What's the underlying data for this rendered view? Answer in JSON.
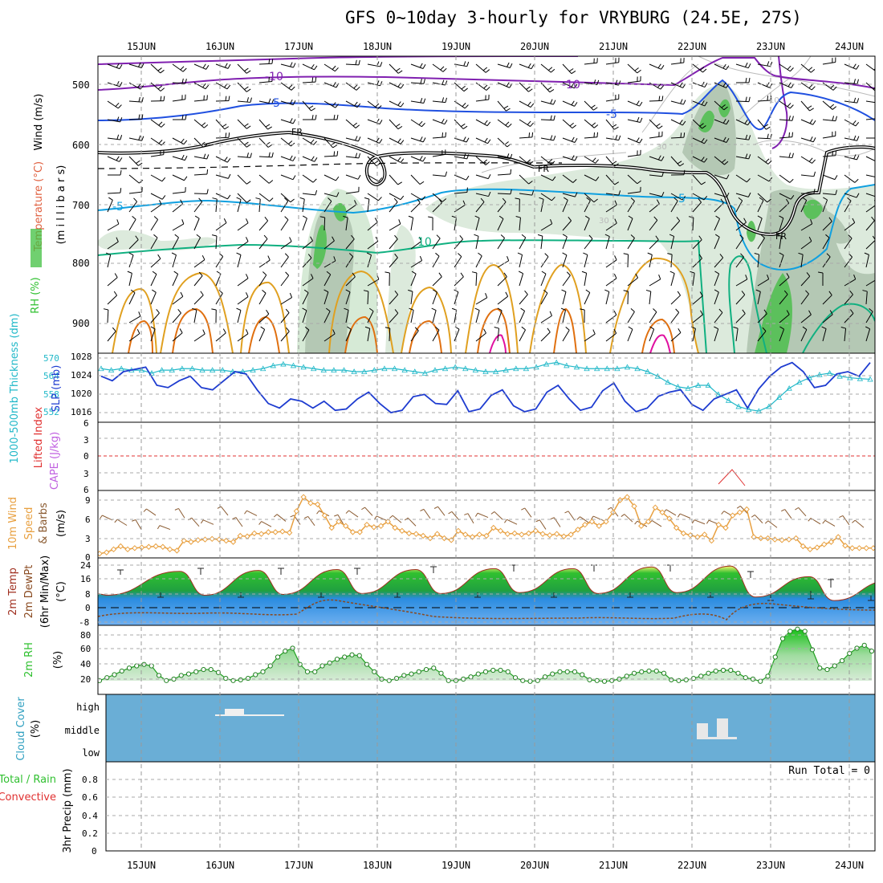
{
  "title": "GFS 0~10day 3-hourly for VRYBURG (24.5E, 27S)",
  "colors": {
    "wind": "#000000",
    "temperature": "#e06040",
    "rh": "#2ec02e",
    "purple": "#8020b0",
    "blue": "#2050e0",
    "lightblue": "#10a0e0",
    "teal": "#10b080",
    "orange": "#e0a020",
    "darkorange": "#e07010",
    "magenta": "#e010a0",
    "slp": "#1e3cd0",
    "thickness": "#20b8c8",
    "cloud_bg": "#6aaed6",
    "wind10": "#e8a040",
    "rh2m": "#30c030"
  },
  "chart_data": [
    {
      "type": "heatmap",
      "name": "upper-air",
      "x": [
        "15JUN",
        "16JUN",
        "17JUN",
        "18JUN",
        "19JUN",
        "20JUN",
        "21JUN",
        "22JUN",
        "23JUN",
        "24JUN"
      ],
      "ylabel_parts": [
        "Wind (m/s)",
        "Temperature (°C)",
        "RH (%)",
        "(m i l l i b a r s)"
      ],
      "yticks": [
        500,
        600,
        700,
        800,
        900
      ],
      "ylim": [
        450,
        950
      ],
      "contour_labels": [
        "-10",
        "-5",
        "FR",
        "FR",
        "-5",
        "10",
        "-10",
        "-5",
        "5",
        "FR",
        "30",
        "30",
        "10"
      ]
    },
    {
      "type": "line",
      "name": "slp-thickness",
      "ylabel_left": "1000-500mb Thickness (dm)",
      "ylabel_right": "SLP (mb)",
      "yticks_left": [
        "570",
        "564",
        "558",
        "552"
      ],
      "yticks_right": [
        "1028",
        "1024",
        "1020",
        "1016"
      ],
      "series": [
        {
          "name": "SLP (mb)",
          "values": [
            1024,
            1023,
            1025,
            1025.5,
            1026,
            1022,
            1021.5,
            1023,
            1024,
            1021.5,
            1021,
            1023,
            1025,
            1024.5,
            1021,
            1018,
            1017,
            1019,
            1018.5,
            1017,
            1018.5,
            1016.5,
            1016.8,
            1019,
            1020.5,
            1018,
            1016,
            1016.5,
            1019.5,
            1020,
            1018,
            1017.8,
            1020.8,
            1016.2,
            1016.8,
            1019.8,
            1021,
            1017.5,
            1016.2,
            1016.8,
            1020.5,
            1022,
            1019,
            1016.5,
            1017.2,
            1020.8,
            1022.5,
            1018.5,
            1016.2,
            1017,
            1019.6,
            1020.5,
            1021,
            1017.8,
            1016.5,
            1019,
            1020,
            1021,
            1017,
            1021.2,
            1024,
            1026,
            1027,
            1025,
            1021.5,
            1022,
            1024.5,
            1025,
            1024,
            1027
          ]
        },
        {
          "name": "Thickness (dm)",
          "values": [
            566.5,
            566,
            566.5,
            566,
            566,
            565,
            566,
            566,
            566.5,
            566.5,
            566,
            566,
            566,
            565.5,
            565.5,
            566,
            566.5,
            567.5,
            568,
            567.5,
            567,
            566.5,
            566,
            566,
            566,
            565.5,
            565.5,
            566,
            566.5,
            566.5,
            566,
            565.5,
            565,
            566,
            566.5,
            567,
            566.5,
            566,
            565.5,
            565.5,
            566,
            566.5,
            566.5,
            567,
            568,
            568.5,
            567.5,
            567,
            566.5,
            566.5,
            566.5,
            566.5,
            567,
            566.5,
            565.5,
            564,
            562,
            560.5,
            560,
            561,
            561,
            558,
            556,
            554,
            553,
            552.5,
            554,
            557,
            560,
            562,
            563.5,
            564.5,
            565,
            564,
            563.5,
            563.2,
            563
          ]
        }
      ]
    },
    {
      "type": "line",
      "name": "cape-lifted-index",
      "ylabel_parts": [
        "Lifted Index",
        "CAPE (J/kg)"
      ],
      "yticks": [
        "6",
        "3",
        "0",
        "3",
        "6"
      ]
    },
    {
      "type": "line",
      "name": "wind-10m",
      "ylabel_parts": [
        "10m Wind",
        "Speed",
        "& Barbs"
      ],
      "unit": "(m/s)",
      "yticks": [
        "9",
        "6",
        "3",
        "0"
      ],
      "series": [
        {
          "name": "10m Wind Speed",
          "values": [
            0.3,
            0.5,
            1,
            1.5,
            1,
            1.2,
            1.3,
            1.4,
            1.5,
            1.4,
            1,
            0.8,
            2.4,
            2.2,
            2.5,
            2.6,
            2.7,
            2.6,
            2.4,
            2.2,
            3.2,
            3.1,
            3.6,
            3.5,
            3.8,
            3.8,
            3.9,
            3.7,
            7.2,
            9.5,
            8.5,
            8.3,
            6.5,
            4.5,
            5.5,
            4.8,
            3.8,
            3.8,
            5,
            4.6,
            4.8,
            5.5,
            4.5,
            4,
            3.6,
            3.5,
            3.2,
            2.8,
            3.5,
            2.8,
            2.5,
            4,
            3.4,
            3,
            3.4,
            3.2,
            4.5,
            4,
            3.5,
            3.6,
            3.4,
            3.6,
            4,
            3.5,
            3.3,
            3.5,
            3.1,
            3.4,
            4.2,
            5,
            5.5,
            4.8,
            5.5,
            7,
            9,
            9.5,
            8,
            4.8,
            5.5,
            7.8,
            7,
            6,
            4.5,
            3.6,
            3.3,
            3,
            3.4,
            2.4,
            5,
            4.5,
            6.5,
            7,
            7.5,
            3,
            2.8,
            2.8,
            2.6,
            2.5,
            2.6,
            2.8,
            1.5,
            1,
            1.3,
            1.8,
            2.2,
            3,
            1.6,
            1.2,
            1.2,
            1.2,
            1.2
          ]
        }
      ]
    },
    {
      "type": "area",
      "name": "temperature-2m",
      "ylabel_parts": [
        "2m Temp",
        "2m DewPt",
        "(6hr Min/Max)"
      ],
      "unit": "(°C)",
      "yticks": [
        "24",
        "16",
        "8",
        "0",
        "-8"
      ]
    },
    {
      "type": "area",
      "name": "rh-2m",
      "ylabel_parts": [
        "2m RH"
      ],
      "unit": "(%)",
      "yticks": [
        "80",
        "60",
        "40",
        "20"
      ],
      "series": [
        {
          "name": "2m RH",
          "values": [
            18,
            22,
            26,
            31,
            35,
            38,
            40,
            38,
            25,
            18,
            20,
            25,
            27,
            30,
            33,
            33,
            29,
            21,
            18,
            19,
            21,
            26,
            30,
            38,
            50,
            58,
            62,
            40,
            30,
            30,
            38,
            42,
            47,
            50,
            53,
            52,
            40,
            30,
            20,
            18,
            21,
            25,
            27,
            30,
            33,
            35,
            28,
            18,
            18,
            20,
            23,
            27,
            30,
            32,
            32,
            30,
            22,
            18,
            17,
            18,
            23,
            27,
            30,
            30,
            30,
            26,
            19,
            18,
            17,
            18,
            20,
            24,
            28,
            30,
            31,
            31,
            28,
            19,
            18,
            19,
            21,
            24,
            28,
            31,
            32,
            32,
            28,
            22,
            20,
            17,
            24,
            50,
            75,
            85,
            88,
            85,
            60,
            35,
            33,
            38,
            45,
            55,
            62,
            66,
            58
          ]
        }
      ]
    },
    {
      "type": "area",
      "name": "cloud-cover",
      "ylabel_parts": [
        "Cloud Cover",
        "(%)"
      ],
      "yticks": [
        "high",
        "middle",
        "low"
      ]
    },
    {
      "type": "bar",
      "name": "precip-3hr",
      "ylabel_parts": [
        "Total / Rain",
        "Convective",
        "3hr Precip (mm)"
      ],
      "yticks": [
        "0.8",
        "0.6",
        "0.4",
        "0.2",
        "0"
      ],
      "ylim": [
        0,
        0.9
      ],
      "annotation": "Run Total = 0",
      "values": []
    }
  ]
}
